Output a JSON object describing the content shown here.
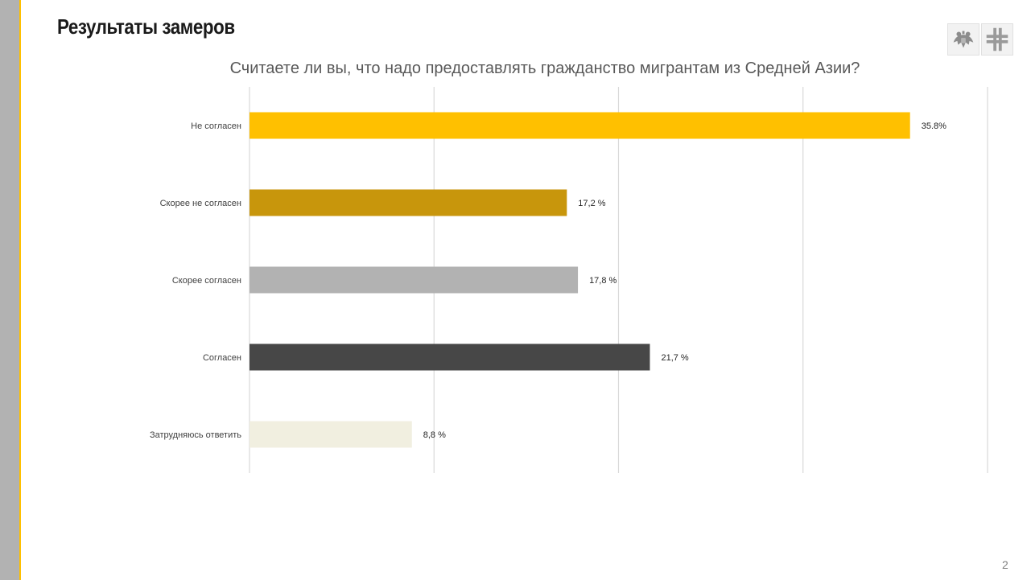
{
  "slide": {
    "title": "Результаты замеров",
    "page_number": "2"
  },
  "logos": [
    {
      "name": "emblem-logo",
      "icon": "double-headed-eagle-icon"
    },
    {
      "name": "grid-logo",
      "icon": "cross-grid-icon"
    }
  ],
  "colors": {
    "sidebar": "#b2b2b2",
    "accent_line": "#ffc000",
    "gridline": "#d9d9d9"
  },
  "chart_data": {
    "type": "bar",
    "orientation": "horizontal",
    "title": "Считаете ли вы, что надо предоставлять гражданство мигрантам из Средней Азии?",
    "categories": [
      "Не согласен",
      "Скорее не согласен",
      "Скорее согласен",
      "Согласен",
      "Затрудняюсь ответить"
    ],
    "values": [
      35.8,
      17.2,
      17.8,
      21.7,
      8.8
    ],
    "data_labels": [
      "35.8%",
      "17,2 %",
      "17,8 %",
      "21,7 %",
      "8,8 %"
    ],
    "bar_colors": [
      "#ffc000",
      "#c8960c",
      "#b2b2b2",
      "#474747",
      "#f1efe0"
    ],
    "xlim": [
      0,
      40
    ],
    "x_gridlines": [
      0,
      10,
      20,
      30,
      40
    ],
    "grid": true,
    "x_tick_labels_shown": false,
    "legend": "none"
  }
}
